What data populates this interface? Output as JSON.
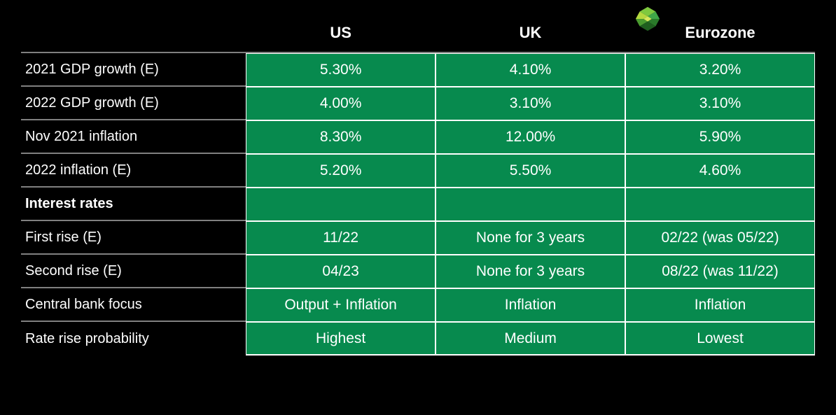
{
  "table": {
    "type": "table",
    "background_color": "#000000",
    "cell_color": "#078a4e",
    "text_color": "#ffffff",
    "grid_color": "#ffffff",
    "row_divider_color": "#808080",
    "header_fontsize": 22,
    "cell_fontsize": 21,
    "label_fontsize": 20,
    "columns": [
      "US",
      "UK",
      "Eurozone"
    ],
    "rows": [
      {
        "label": "2021 GDP growth (E)",
        "values": [
          "5.30%",
          "4.10%",
          "3.20%"
        ],
        "section": false
      },
      {
        "label": "2022 GDP growth (E)",
        "values": [
          "4.00%",
          "3.10%",
          "3.10%"
        ],
        "section": false
      },
      {
        "label": "Nov 2021 inflation",
        "values": [
          "8.30%",
          "12.00%",
          "5.90%"
        ],
        "section": false
      },
      {
        "label": "2022 inflation (E)",
        "values": [
          "5.20%",
          "5.50%",
          "4.60%"
        ],
        "section": false
      },
      {
        "label": "Interest rates",
        "values": [
          "",
          "",
          ""
        ],
        "section": true,
        "empty": true
      },
      {
        "label": "First rise (E)",
        "values": [
          "11/22",
          "None for 3 years",
          "02/22 (was 05/22)"
        ],
        "section": false
      },
      {
        "label": "Second rise (E)",
        "values": [
          "04/23",
          "None for 3 years",
          "08/22 (was 11/22)"
        ],
        "section": false
      },
      {
        "label": "Central bank focus",
        "values": [
          "Output + Inflation",
          "Inflation",
          "Inflation"
        ],
        "section": false
      },
      {
        "label": "Rate rise probability",
        "values": [
          "Highest",
          "Medium",
          "Lowest"
        ],
        "section": false,
        "last": true
      }
    ]
  }
}
